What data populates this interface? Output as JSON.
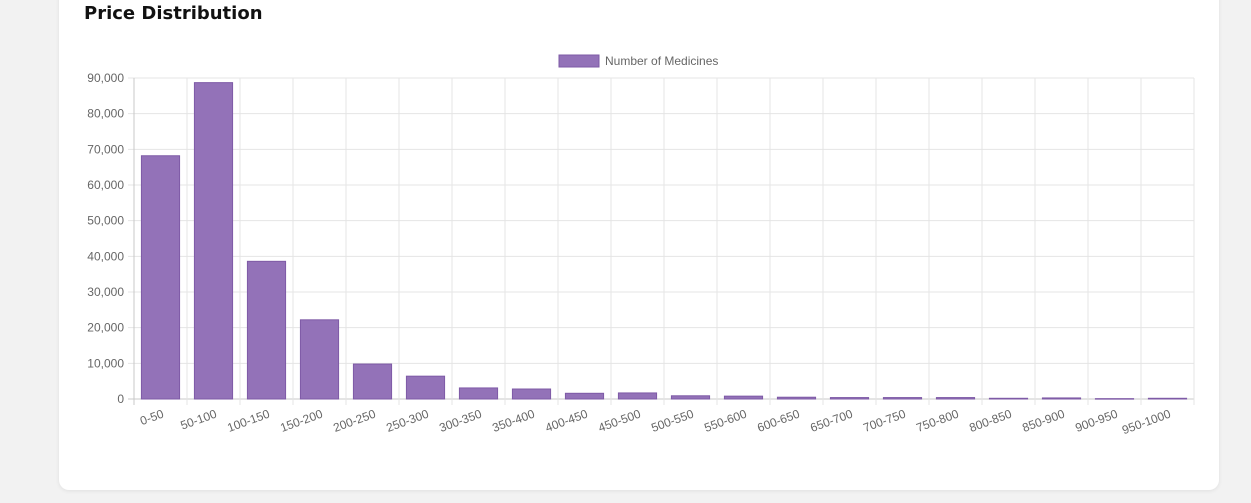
{
  "card": {
    "title": "Price Distribution"
  },
  "chart_data": {
    "type": "bar",
    "categories": [
      "0-50",
      "50-100",
      "100-150",
      "150-200",
      "200-250",
      "250-300",
      "300-350",
      "350-400",
      "400-450",
      "450-500",
      "500-550",
      "550-600",
      "600-650",
      "650-700",
      "700-750",
      "750-800",
      "800-850",
      "850-900",
      "900-950",
      "950-1000"
    ],
    "series": [
      {
        "name": "Number of Medicines",
        "values": [
          68200,
          88700,
          38600,
          22200,
          9800,
          6400,
          3100,
          2800,
          1600,
          1700,
          900,
          800,
          500,
          400,
          400,
          400,
          200,
          300,
          100,
          200
        ]
      }
    ],
    "ylim": [
      0,
      90000
    ],
    "yticks": [
      0,
      10000,
      20000,
      30000,
      40000,
      50000,
      60000,
      70000,
      80000,
      90000
    ],
    "grid": true,
    "legend": "top-center",
    "colors": {
      "bar_fill": "#9372b8",
      "bar_border": "#7e5aa6",
      "grid": "#e5e5e5",
      "axis": "#c8c8c8"
    }
  }
}
